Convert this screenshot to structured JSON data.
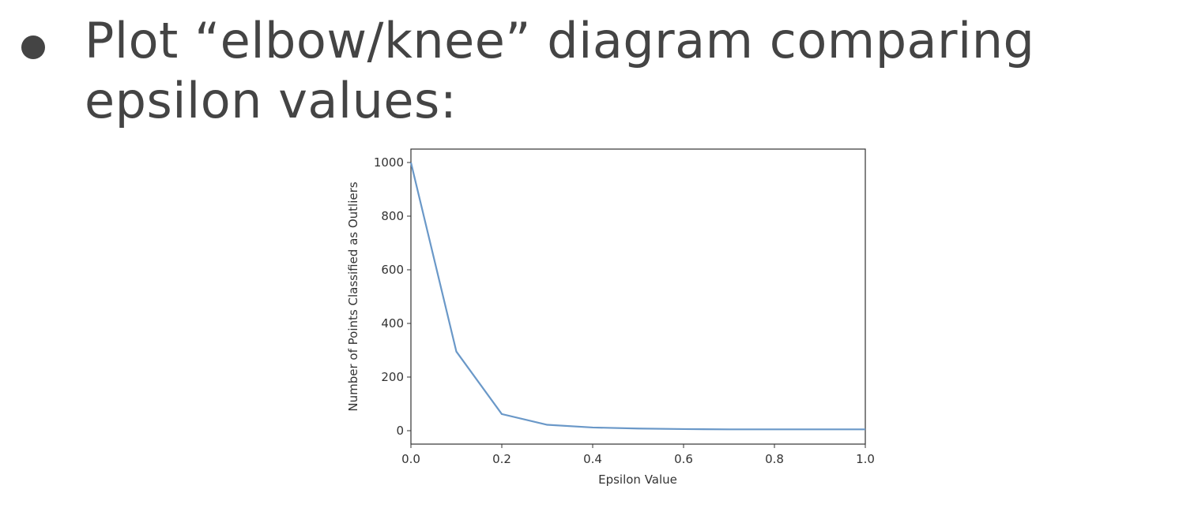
{
  "slide": {
    "heading": "Plot “elbow/knee” diagram comparing epsilon values:"
  },
  "chart_data": {
    "type": "line",
    "title": "",
    "xlabel": "Epsilon Value",
    "ylabel": "Number of Points Classified as Outliers",
    "xlim": [
      0.0,
      1.0
    ],
    "ylim": [
      -50,
      1050
    ],
    "x_ticks": [
      "0.0",
      "0.2",
      "0.4",
      "0.6",
      "0.8",
      "1.0"
    ],
    "y_ticks": [
      "0",
      "200",
      "400",
      "600",
      "800",
      "1000"
    ],
    "grid": false,
    "line_color": "#6a98c8",
    "series": [
      {
        "x": [
          0.0,
          0.1,
          0.2,
          0.3,
          0.4,
          0.5,
          0.6,
          0.7,
          0.8,
          0.9,
          1.0
        ],
        "values": [
          1000,
          295,
          62,
          22,
          12,
          8,
          6,
          5,
          5,
          5,
          5
        ]
      }
    ]
  }
}
